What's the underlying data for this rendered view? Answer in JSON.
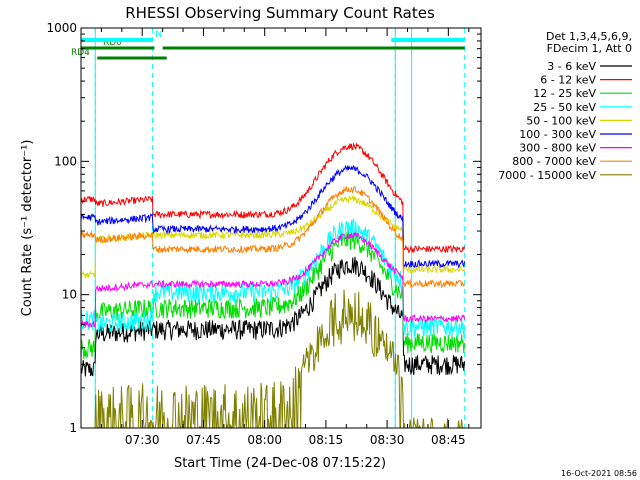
{
  "chart_data": {
    "type": "line",
    "title": "RHESSI Observing Summary Count Rates",
    "xlabel": "Start Time (24-Dec-08 07:15:22)",
    "ylabel": "Count Rate (s⁻¹ detector⁻¹)",
    "yscale": "log",
    "ylim": [
      1,
      1000
    ],
    "xlim_minutes": [
      0,
      98
    ],
    "x_ticks": [
      {
        "label": "07:30",
        "min": 15
      },
      {
        "label": "07:45",
        "min": 30
      },
      {
        "label": "08:00",
        "min": 45
      },
      {
        "label": "08:15",
        "min": 60
      },
      {
        "label": "08:30",
        "min": 75
      },
      {
        "label": "08:45",
        "min": 90
      }
    ],
    "y_ticks": [
      {
        "label": "1",
        "value": 1
      },
      {
        "label": "10",
        "value": 10
      },
      {
        "label": "100",
        "value": 100
      },
      {
        "label": "1000",
        "value": 1000
      }
    ],
    "legend_header": [
      "Det 1,3,4,5,6,9,",
      "FDecim 1, Att 0"
    ],
    "legend_position": "right",
    "series": [
      {
        "name": "3 - 6 keV",
        "color": "#000000",
        "base": 5.5,
        "peak": 17,
        "pre": 0
      },
      {
        "name": "6 - 12 keV",
        "color": "#ff0000",
        "base": 40,
        "peak": 130,
        "pre": 52
      },
      {
        "name": "12 - 25 keV",
        "color": "#00dd00",
        "base": 8,
        "peak": 26,
        "pre": 0
      },
      {
        "name": "25 - 50 keV",
        "color": "#00ffff",
        "base": 10.5,
        "peak": 32,
        "pre": 6.5
      },
      {
        "name": "50 - 100 keV",
        "color": "#d8d800",
        "base": 28,
        "peak": 52,
        "pre": 0
      },
      {
        "name": "100 - 300 keV",
        "color": "#0000ff",
        "base": 31,
        "peak": 88,
        "pre": 38
      },
      {
        "name": "300 - 800 keV",
        "color": "#ff00ff",
        "base": 12,
        "peak": 28,
        "pre": 0
      },
      {
        "name": "800 - 7000 keV",
        "color": "#ff8000",
        "base": 22,
        "peak": 62,
        "pre": 28
      },
      {
        "name": "7000 - 15000 keV",
        "color": "#808000",
        "base": 1,
        "peak": 5.5,
        "pre": 0
      }
    ],
    "flare_peak_min": 66,
    "data_start_min": 0,
    "data_end_min": 94,
    "eclipse_intervals_min": [
      [
        0,
        3.5
      ],
      [
        77,
        81
      ]
    ],
    "saa_markers_min": [
      3.5,
      17.5,
      77,
      94
    ],
    "flags": [
      {
        "label": "RD0",
        "color": "#008000",
        "spans_min": [
          [
            0,
            18
          ],
          [
            20,
            94
          ]
        ]
      },
      {
        "label": "RD4",
        "color": "#008000",
        "spans_min": [
          [
            4,
            21
          ]
        ]
      },
      {
        "label": "N",
        "color": "#00ffff",
        "spans_min": [
          [
            0,
            17.5
          ],
          [
            76,
            94
          ]
        ]
      }
    ],
    "grid": false
  },
  "timestamp": "16-Oct-2021 08:56"
}
